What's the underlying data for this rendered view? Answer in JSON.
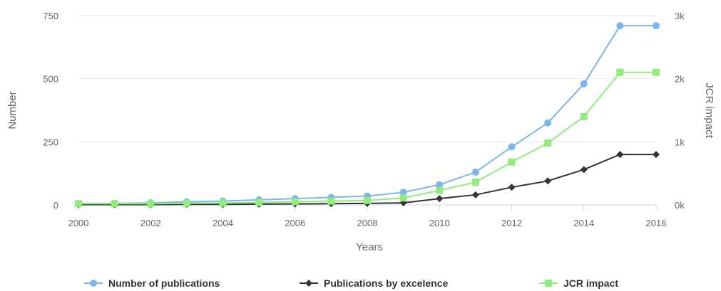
{
  "chart_data": {
    "type": "line",
    "xlabel": "Years",
    "ylabel": "Number",
    "y2label": "JCR impact",
    "x": [
      2000,
      2001,
      2002,
      2003,
      2004,
      2005,
      2006,
      2007,
      2008,
      2009,
      2010,
      2011,
      2012,
      2013,
      2014,
      2015,
      2016
    ],
    "x_ticks": [
      "2000",
      "2002",
      "2004",
      "2006",
      "2008",
      "2010",
      "2012",
      "2014",
      "2016"
    ],
    "ylim": [
      0,
      750
    ],
    "y_ticks": [
      "0",
      "250",
      "500",
      "750"
    ],
    "y2lim": [
      0,
      3000
    ],
    "y2_ticks": [
      "0k",
      "1k",
      "2k",
      "3k"
    ],
    "grid": true,
    "legend_position": "bottom",
    "series": [
      {
        "name": "Number of publications",
        "axis": "left",
        "color": "#7cb5ec",
        "marker": "circle",
        "values": [
          5,
          6,
          8,
          12,
          15,
          20,
          25,
          30,
          35,
          50,
          80,
          130,
          230,
          325,
          480,
          710,
          710
        ]
      },
      {
        "name": "Publications by excelence",
        "axis": "left",
        "color": "#333333",
        "marker": "diamond",
        "values": [
          1,
          1,
          1,
          2,
          2,
          3,
          4,
          5,
          6,
          8,
          25,
          40,
          70,
          95,
          140,
          200,
          200
        ]
      },
      {
        "name": "JCR impact",
        "axis": "right",
        "color": "#90ed7d",
        "marker": "square",
        "values": [
          20,
          20,
          20,
          25,
          30,
          40,
          50,
          60,
          70,
          110,
          230,
          360,
          680,
          980,
          1400,
          2100,
          2100
        ]
      }
    ]
  }
}
